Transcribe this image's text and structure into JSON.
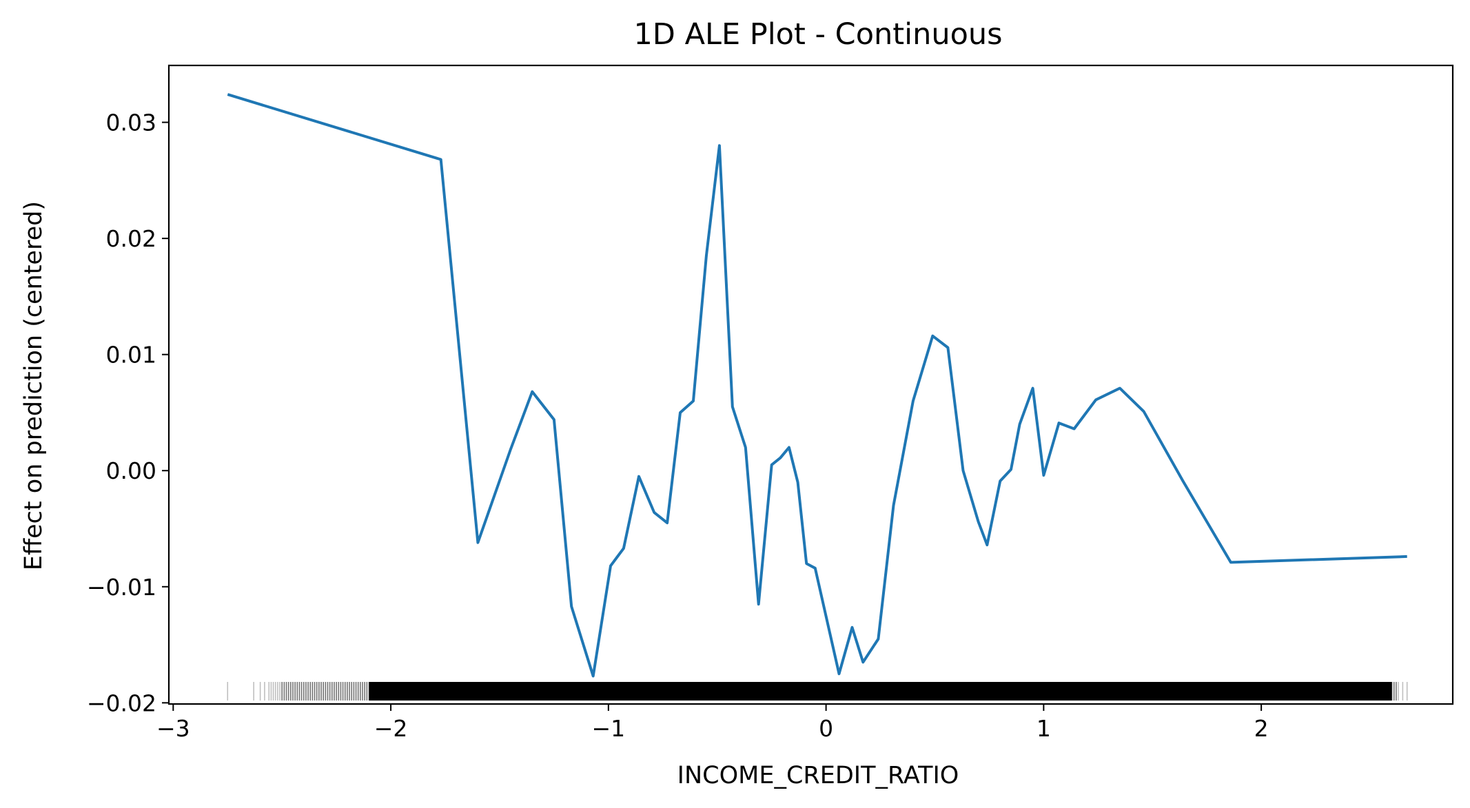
{
  "chart_data": {
    "type": "line",
    "title": "1D ALE Plot - Continuous",
    "xlabel": "INCOME_CREDIT_RATIO",
    "ylabel": "Effect on prediction (centered)",
    "xlim": [
      -3.02,
      2.88
    ],
    "ylim": [
      -0.0201,
      0.0349
    ],
    "xticks": [
      -3,
      -2,
      -1,
      0,
      1,
      2
    ],
    "xtick_labels": [
      "−3",
      "−2",
      "−1",
      "0",
      "1",
      "2"
    ],
    "yticks": [
      -0.02,
      -0.01,
      0.0,
      0.01,
      0.02,
      0.03
    ],
    "ytick_labels": [
      "−0.02",
      "−0.01",
      "0.00",
      "0.01",
      "0.02",
      "0.03"
    ],
    "grid": false,
    "series": [
      {
        "color": "#1f77b4",
        "x": [
          -2.75,
          -1.77,
          -1.6,
          -1.45,
          -1.35,
          -1.25,
          -1.17,
          -1.07,
          -0.99,
          -0.93,
          -0.86,
          -0.79,
          -0.73,
          -0.67,
          -0.61,
          -0.55,
          -0.49,
          -0.43,
          -0.37,
          -0.31,
          -0.25,
          -0.21,
          -0.17,
          -0.13,
          -0.09,
          -0.05,
          0.06,
          0.12,
          0.17,
          0.24,
          0.31,
          0.4,
          0.49,
          0.56,
          0.63,
          0.7,
          0.74,
          0.8,
          0.85,
          0.89,
          0.95,
          1.0,
          1.07,
          1.14,
          1.24,
          1.35,
          1.46,
          1.64,
          1.86,
          2.67
        ],
        "y": [
          0.0324,
          0.0268,
          -0.0062,
          0.0018,
          0.0068,
          0.0044,
          -0.0117,
          -0.0177,
          -0.0082,
          -0.0067,
          -0.0005,
          -0.0036,
          -0.0045,
          0.005,
          0.006,
          0.0185,
          0.028,
          0.0055,
          0.002,
          -0.0115,
          0.0005,
          0.0011,
          0.002,
          -0.001,
          -0.008,
          -0.0084,
          -0.0175,
          -0.0135,
          -0.0165,
          -0.0145,
          -0.003,
          0.006,
          0.0116,
          0.0106,
          0.0,
          -0.0044,
          -0.0064,
          -0.0009,
          0.0001,
          0.004,
          0.0071,
          -0.0004,
          0.0041,
          0.0036,
          0.0061,
          0.0071,
          0.0051,
          -0.0009,
          -0.0079,
          -0.0074
        ]
      }
    ],
    "rug_color": "#000000",
    "rug": [
      -2.75,
      -2.63,
      -2.6,
      -2.58,
      -2.56,
      -2.55,
      -2.54,
      -2.53,
      -2.52,
      -2.51,
      -2.5,
      -2.49,
      -2.48,
      -2.47,
      -2.46,
      -2.45,
      -2.44,
      -2.43,
      -2.42,
      -2.41,
      -2.4,
      -2.39,
      -2.38,
      -2.37,
      -2.36,
      -2.35,
      -2.34,
      -2.33,
      -2.32,
      -2.31,
      -2.3,
      -2.29,
      -2.28,
      -2.27,
      -2.26,
      -2.25,
      -2.24,
      -2.23,
      -2.22,
      -2.21,
      -2.2,
      -2.19,
      -2.18,
      -2.17,
      -2.16,
      -2.15,
      -2.14,
      -2.13,
      -2.12,
      -2.11,
      -2.1,
      2.6,
      2.61,
      2.62,
      2.63,
      2.65,
      2.67
    ]
  }
}
